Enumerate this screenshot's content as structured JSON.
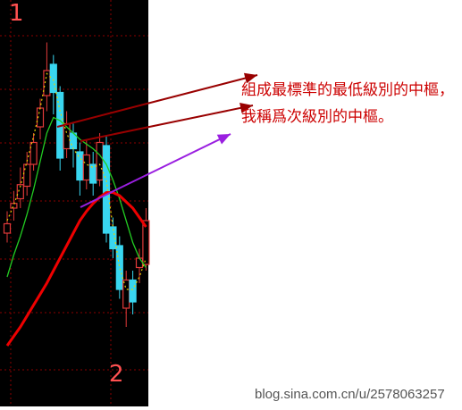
{
  "annotation_text": "組成最標準的最低級別的中樞，我稱爲次級別的中樞。",
  "watermark": "blog.sina.com.cn/u/2578063257",
  "wave_labels": [
    "1",
    "2"
  ],
  "colors": {
    "chart_bg": "#000000",
    "page_bg": "#ffffff",
    "grid": "#8b0000",
    "bull_candle": "#e23a3a",
    "bear_candle": "#39d6f0",
    "ma_slow": "#ee0000",
    "ma_mid": "#22cc22",
    "ma_fast": "#e8d000",
    "arrow_dark_red": "#990000",
    "arrow_purple": "#9a1fe0",
    "annotation": "#cc0000",
    "wave_label": "#ff5050"
  },
  "chart_data": {
    "type": "candlestick",
    "title": "",
    "xlabel": "",
    "ylabel": "",
    "candles": [
      {
        "o": 228,
        "c": 234,
        "h": 242,
        "l": 222
      },
      {
        "o": 244,
        "c": 247,
        "h": 255,
        "l": 236
      },
      {
        "o": 250,
        "c": 259,
        "h": 270,
        "l": 244
      },
      {
        "o": 258,
        "c": 272,
        "h": 280,
        "l": 252
      },
      {
        "o": 272,
        "c": 286,
        "h": 292,
        "l": 268
      },
      {
        "o": 296,
        "c": 308,
        "h": 314,
        "l": 288
      },
      {
        "o": 316,
        "c": 332,
        "h": 350,
        "l": 306
      },
      {
        "o": 336,
        "c": 318,
        "h": 342,
        "l": 304
      },
      {
        "o": 318,
        "c": 276,
        "h": 322,
        "l": 268
      },
      {
        "o": 282,
        "c": 298,
        "h": 306,
        "l": 276
      },
      {
        "o": 292,
        "c": 282,
        "h": 298,
        "l": 270
      },
      {
        "o": 280,
        "c": 262,
        "h": 286,
        "l": 252
      },
      {
        "o": 262,
        "c": 278,
        "h": 288,
        "l": 256
      },
      {
        "o": 272,
        "c": 260,
        "h": 280,
        "l": 252
      },
      {
        "o": 262,
        "c": 286,
        "h": 292,
        "l": 258
      },
      {
        "o": 284,
        "c": 228,
        "h": 290,
        "l": 222
      },
      {
        "o": 232,
        "c": 218,
        "h": 238,
        "l": 212
      },
      {
        "o": 220,
        "c": 192,
        "h": 226,
        "l": 186
      },
      {
        "o": 180,
        "c": 198,
        "h": 204,
        "l": 168
      },
      {
        "o": 198,
        "c": 184,
        "h": 204,
        "l": 176
      },
      {
        "o": 206,
        "c": 212,
        "h": 218,
        "l": 196
      },
      {
        "o": 208,
        "c": 236,
        "h": 244,
        "l": 204
      }
    ],
    "ma_slow": [
      156,
      162,
      168,
      175,
      182,
      189,
      196,
      204,
      212,
      220,
      228,
      236,
      242,
      247,
      251,
      254,
      254,
      252,
      248,
      244,
      238,
      232
    ],
    "ma_mid": [
      200,
      214,
      226,
      240,
      256,
      274,
      292,
      302,
      300,
      296,
      292,
      288,
      285,
      282,
      278,
      272,
      262,
      250,
      236,
      222,
      212,
      206
    ],
    "ma_fast": [
      236,
      246,
      258,
      274,
      290,
      308,
      330,
      326,
      306,
      292,
      282,
      276,
      272,
      270,
      272,
      262,
      232,
      206,
      192,
      192,
      200,
      212
    ],
    "ylim": [
      160,
      360
    ],
    "grid": true
  }
}
